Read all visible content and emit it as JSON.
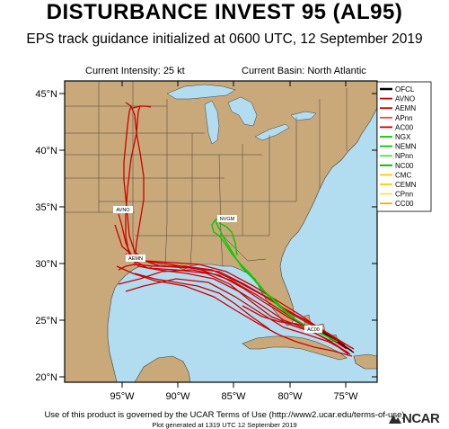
{
  "header": {
    "title": "DISTURBANCE INVEST 95 (AL95)",
    "subtitle": "EPS track guidance initialized at 0600 UTC, 12 September 2019"
  },
  "info": {
    "intensity": "Current Intensity: 25 kt",
    "basin": "Current Basin: North Atlantic"
  },
  "axes": {
    "lat_labels": [
      "45°N",
      "40°N",
      "35°N",
      "30°N",
      "25°N",
      "20°N"
    ],
    "lon_labels": [
      "95°W",
      "90°W",
      "85°W",
      "80°W",
      "75°W"
    ]
  },
  "legend": [
    {
      "label": "OFCL",
      "color": "#000000"
    },
    {
      "label": "AVNO",
      "color": "#cc0000"
    },
    {
      "label": "AEMN",
      "color": "#cc0000"
    },
    {
      "label": "APnn",
      "color": "#e05050"
    },
    {
      "label": "AC00",
      "color": "#cc0000"
    },
    {
      "label": "NGX",
      "color": "#00cc00"
    },
    {
      "label": "NEMN",
      "color": "#00cc00"
    },
    {
      "label": "NPnn",
      "color": "#55dd55"
    },
    {
      "label": "NC00",
      "color": "#00aa00"
    },
    {
      "label": "CMC",
      "color": "#ffcc00"
    },
    {
      "label": "CEMN",
      "color": "#ffcc00"
    },
    {
      "label": "CPnn",
      "color": "#ffdd66"
    },
    {
      "label": "CC00",
      "color": "#ffaa00"
    }
  ],
  "track_labels": {
    "avno": "AVNO",
    "aemn": "AEMN",
    "nvgm": "NVGM",
    "ac00": "AC00"
  },
  "footer": {
    "terms": "Use of this product is governed by the UCAR Terms of Use (http://www2.ucar.edu/terms-of-use)",
    "generated": "Plot generated at 1319 UTC 12 September 2019",
    "logo": "NCAR"
  },
  "colors": {
    "land": "#c9a97a",
    "water": "#b2dcf0",
    "border": "#404040"
  }
}
